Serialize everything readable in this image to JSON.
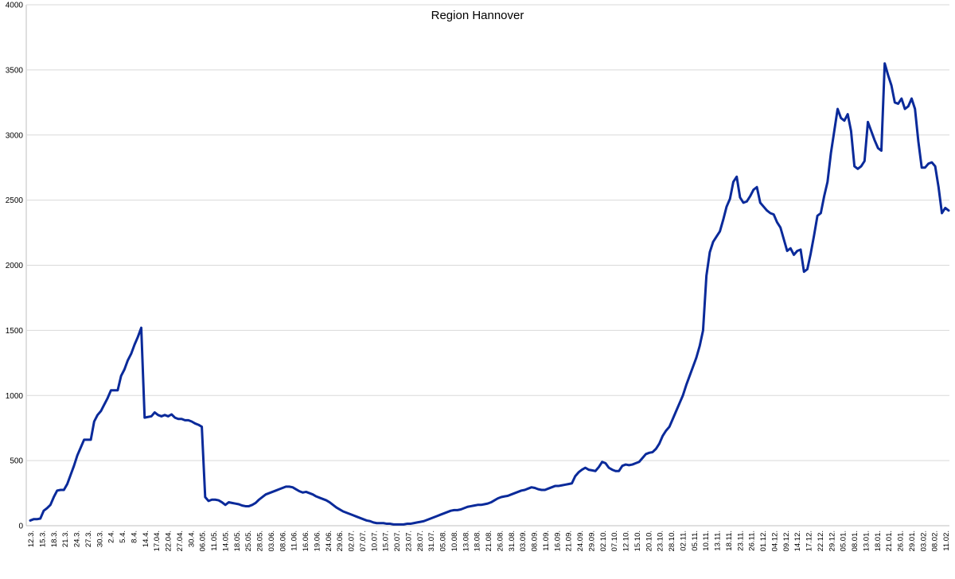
{
  "chart_data": {
    "type": "line",
    "title": "Region Hannover",
    "xlabel": "",
    "ylabel": "",
    "ylim": [
      0,
      4000
    ],
    "yticks": [
      0,
      500,
      1000,
      1500,
      2000,
      2500,
      3000,
      3500,
      4000
    ],
    "grid": true,
    "legend": "none",
    "line_color": "#0a2a9a",
    "x_tick_labels": [
      "12.3.",
      "15.3.",
      "18.3.",
      "21.3.",
      "24.3.",
      "27.3.",
      "30.3.",
      "2.4.",
      "5.4.",
      "8.4.",
      "14.4.",
      "17.04.",
      "22.04.",
      "27.04.",
      "30.4.",
      "06.05.",
      "11.05.",
      "14.05.",
      "18.05.",
      "25.05.",
      "28.05.",
      "03.06.",
      "08.06.",
      "11.06.",
      "16.06.",
      "19.06.",
      "24.06.",
      "29.06.",
      "02.07.",
      "07.07.",
      "10.07.",
      "15.07.",
      "20.07.",
      "23.07.",
      "28.07.",
      "31.07.",
      "05.08.",
      "10.08.",
      "13.08.",
      "18.08.",
      "21.08.",
      "26.08.",
      "31.08.",
      "03.09.",
      "08.09.",
      "11.09.",
      "16.09.",
      "21.09.",
      "24.09.",
      "29.09.",
      "02.10.",
      "07.10.",
      "12.10.",
      "15.10.",
      "20.10.",
      "23.10.",
      "28.10.",
      "02.11.",
      "05.11.",
      "10.11.",
      "13.11.",
      "18.11.",
      "23.11.",
      "26.11.",
      "01.12.",
      "04.12.",
      "09.12.",
      "14.12.",
      "17.12.",
      "22.12.",
      "29.12.",
      "05.01.",
      "08.01.",
      "13.01.",
      "18.01.",
      "21.01.",
      "26.01.",
      "29.01.",
      "03.02.",
      "08.02.",
      "11.02."
    ],
    "series": [
      {
        "values": [
          40,
          50,
          50,
          55,
          115,
          135,
          160,
          220,
          270,
          275,
          275,
          320,
          390,
          460,
          540,
          600,
          660,
          660,
          660,
          800,
          850,
          880,
          930,
          980,
          1040,
          1040,
          1040,
          1150,
          1200,
          1270,
          1320,
          1390,
          1450,
          1520,
          830,
          835,
          840,
          870,
          850,
          840,
          850,
          840,
          855,
          830,
          820,
          820,
          810,
          810,
          800,
          785,
          775,
          760,
          220,
          190,
          200,
          200,
          195,
          180,
          160,
          180,
          175,
          170,
          165,
          155,
          150,
          150,
          160,
          175,
          200,
          220,
          240,
          250,
          260,
          270,
          280,
          290,
          300,
          300,
          295,
          280,
          265,
          255,
          260,
          250,
          240,
          225,
          215,
          205,
          195,
          180,
          160,
          140,
          125,
          110,
          100,
          90,
          80,
          70,
          60,
          50,
          40,
          35,
          25,
          20,
          20,
          20,
          15,
          15,
          10,
          10,
          10,
          10,
          15,
          15,
          20,
          25,
          30,
          35,
          45,
          55,
          65,
          75,
          85,
          95,
          105,
          115,
          120,
          120,
          125,
          135,
          145,
          150,
          155,
          160,
          160,
          165,
          170,
          180,
          195,
          210,
          220,
          225,
          230,
          240,
          250,
          260,
          270,
          275,
          285,
          295,
          290,
          280,
          275,
          275,
          285,
          295,
          305,
          305,
          310,
          315,
          320,
          325,
          380,
          410,
          430,
          445,
          430,
          425,
          420,
          450,
          490,
          480,
          445,
          430,
          420,
          420,
          460,
          470,
          465,
          470,
          480,
          490,
          520,
          550,
          560,
          565,
          590,
          630,
          690,
          730,
          760,
          820,
          880,
          940,
          1000,
          1080,
          1150,
          1220,
          1290,
          1380,
          1500,
          1920,
          2100,
          2180,
          2220,
          2260,
          2350,
          2450,
          2510,
          2640,
          2680,
          2520,
          2480,
          2490,
          2530,
          2580,
          2600,
          2480,
          2450,
          2420,
          2400,
          2390,
          2330,
          2290,
          2200,
          2110,
          2130,
          2080,
          2110,
          2120,
          1950,
          1970,
          2090,
          2230,
          2380,
          2400,
          2530,
          2640,
          2860,
          3030,
          3200,
          3130,
          3110,
          3160,
          3030,
          2760,
          2740,
          2760,
          2800,
          3100,
          3030,
          2960,
          2900,
          2880,
          3550,
          3460,
          3380,
          3250,
          3240,
          3280,
          3200,
          3220,
          3280,
          3200,
          2950,
          2750,
          2750,
          2780,
          2790,
          2760,
          2600,
          2400,
          2440,
          2420
        ]
      }
    ]
  }
}
